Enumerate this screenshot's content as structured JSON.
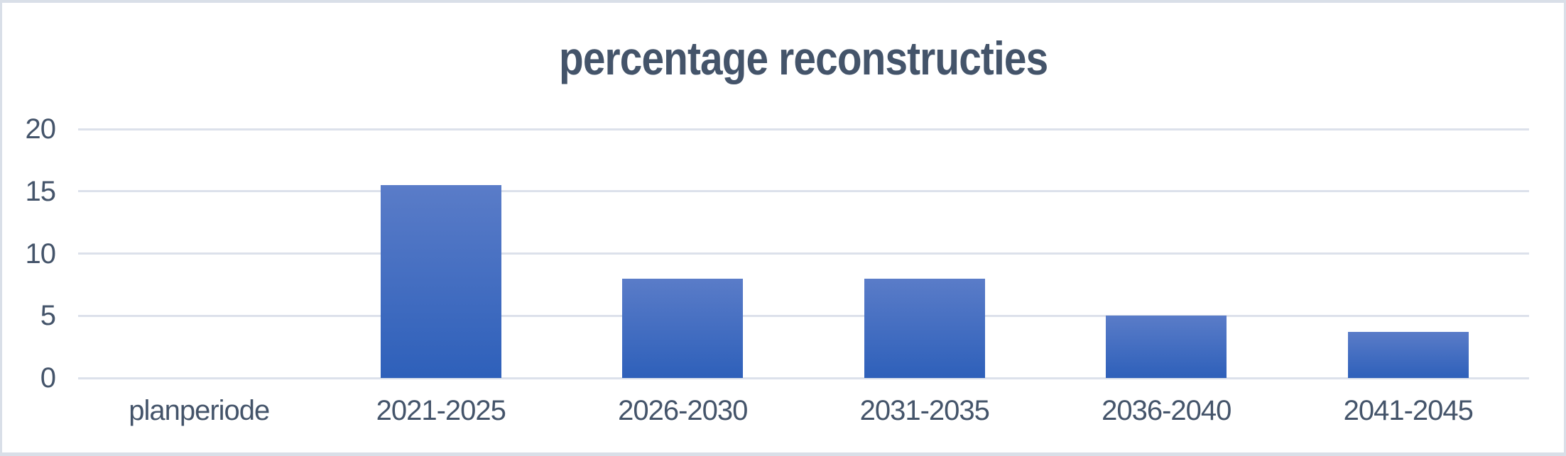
{
  "chart_data": {
    "type": "bar",
    "title": "percentage reconstructies",
    "categories": [
      "planperiode",
      "2021-2025",
      "2026-2030",
      "2031-2035",
      "2036-2040",
      "2041-2045"
    ],
    "values": [
      0,
      15.5,
      8,
      8,
      5,
      3.7
    ],
    "xlabel": "",
    "ylabel": "",
    "yticks": [
      0,
      5,
      10,
      15,
      20
    ],
    "ylim": [
      0,
      20
    ],
    "grid": true,
    "legend_position": "none"
  },
  "colors": {
    "title_text": "#44546A",
    "axis_text": "#44546A",
    "gridline": "#DCE1EB",
    "frame_border": "#D9DFE8",
    "background": "#FFFFFF",
    "bar_gradient_top": "#5A7CC8",
    "bar_gradient_bottom": "#2E60BA"
  }
}
